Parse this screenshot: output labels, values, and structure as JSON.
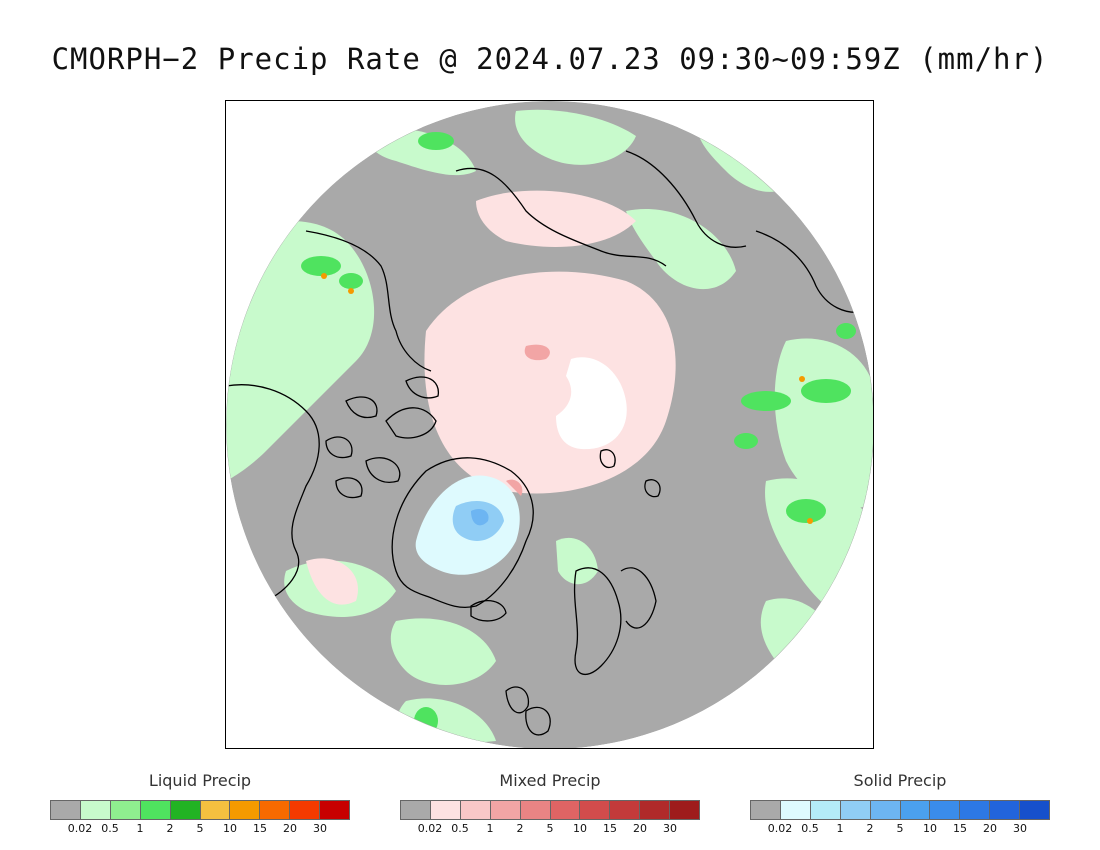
{
  "title": "CMORPH−2 Precip Rate @ 2024.07.23 09:30~09:59Z (mm/hr)",
  "map": {
    "projection": "polar-stereographic-north",
    "background_color": "#a9a9a9",
    "no_data_color": "#ffffff"
  },
  "legends": [
    {
      "title": "Liquid Precip",
      "colors": [
        "#a9a9a9",
        "#c8facc",
        "#8fef8f",
        "#4fe35f",
        "#22b323",
        "#f5c040",
        "#f59a00",
        "#f76a00",
        "#f43a00",
        "#c80000"
      ],
      "ticks": [
        "0.02",
        "0.5",
        "1",
        "2",
        "5",
        "10",
        "15",
        "20",
        "30"
      ]
    },
    {
      "title": "Mixed Precip",
      "colors": [
        "#a9a9a9",
        "#fde2e2",
        "#f9c8c8",
        "#f2a5a5",
        "#e98484",
        "#df6464",
        "#d24c4c",
        "#c33a3a",
        "#b02a2a",
        "#9e1c1c"
      ],
      "ticks": [
        "0.02",
        "0.5",
        "1",
        "2",
        "5",
        "10",
        "15",
        "20",
        "30"
      ]
    },
    {
      "title": "Solid Precip",
      "colors": [
        "#a9a9a9",
        "#defafe",
        "#b4ecf8",
        "#90cdf5",
        "#6db5f2",
        "#4ba0ee",
        "#3a8cea",
        "#2d78e4",
        "#2264dc",
        "#1650cc"
      ],
      "ticks": [
        "0.02",
        "0.5",
        "1",
        "2",
        "5",
        "10",
        "15",
        "20",
        "30"
      ]
    }
  ]
}
